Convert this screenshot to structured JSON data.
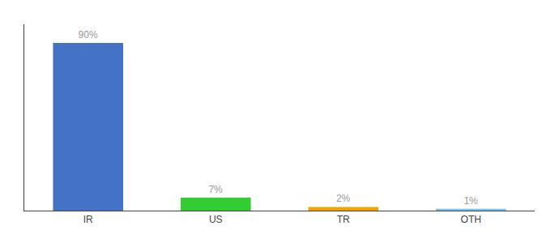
{
  "chart_data": {
    "type": "bar",
    "categories": [
      "IR",
      "US",
      "TR",
      "OTH"
    ],
    "values": [
      90,
      7,
      2,
      1
    ],
    "value_labels": [
      "90%",
      "7%",
      "2%",
      "1%"
    ],
    "colors": [
      "#4472c4",
      "#33cc33",
      "#f0a500",
      "#74c6e8"
    ],
    "ylim": [
      0,
      100
    ],
    "yticks": [],
    "grid": false,
    "data_labels": true,
    "tick_labels": "x"
  }
}
